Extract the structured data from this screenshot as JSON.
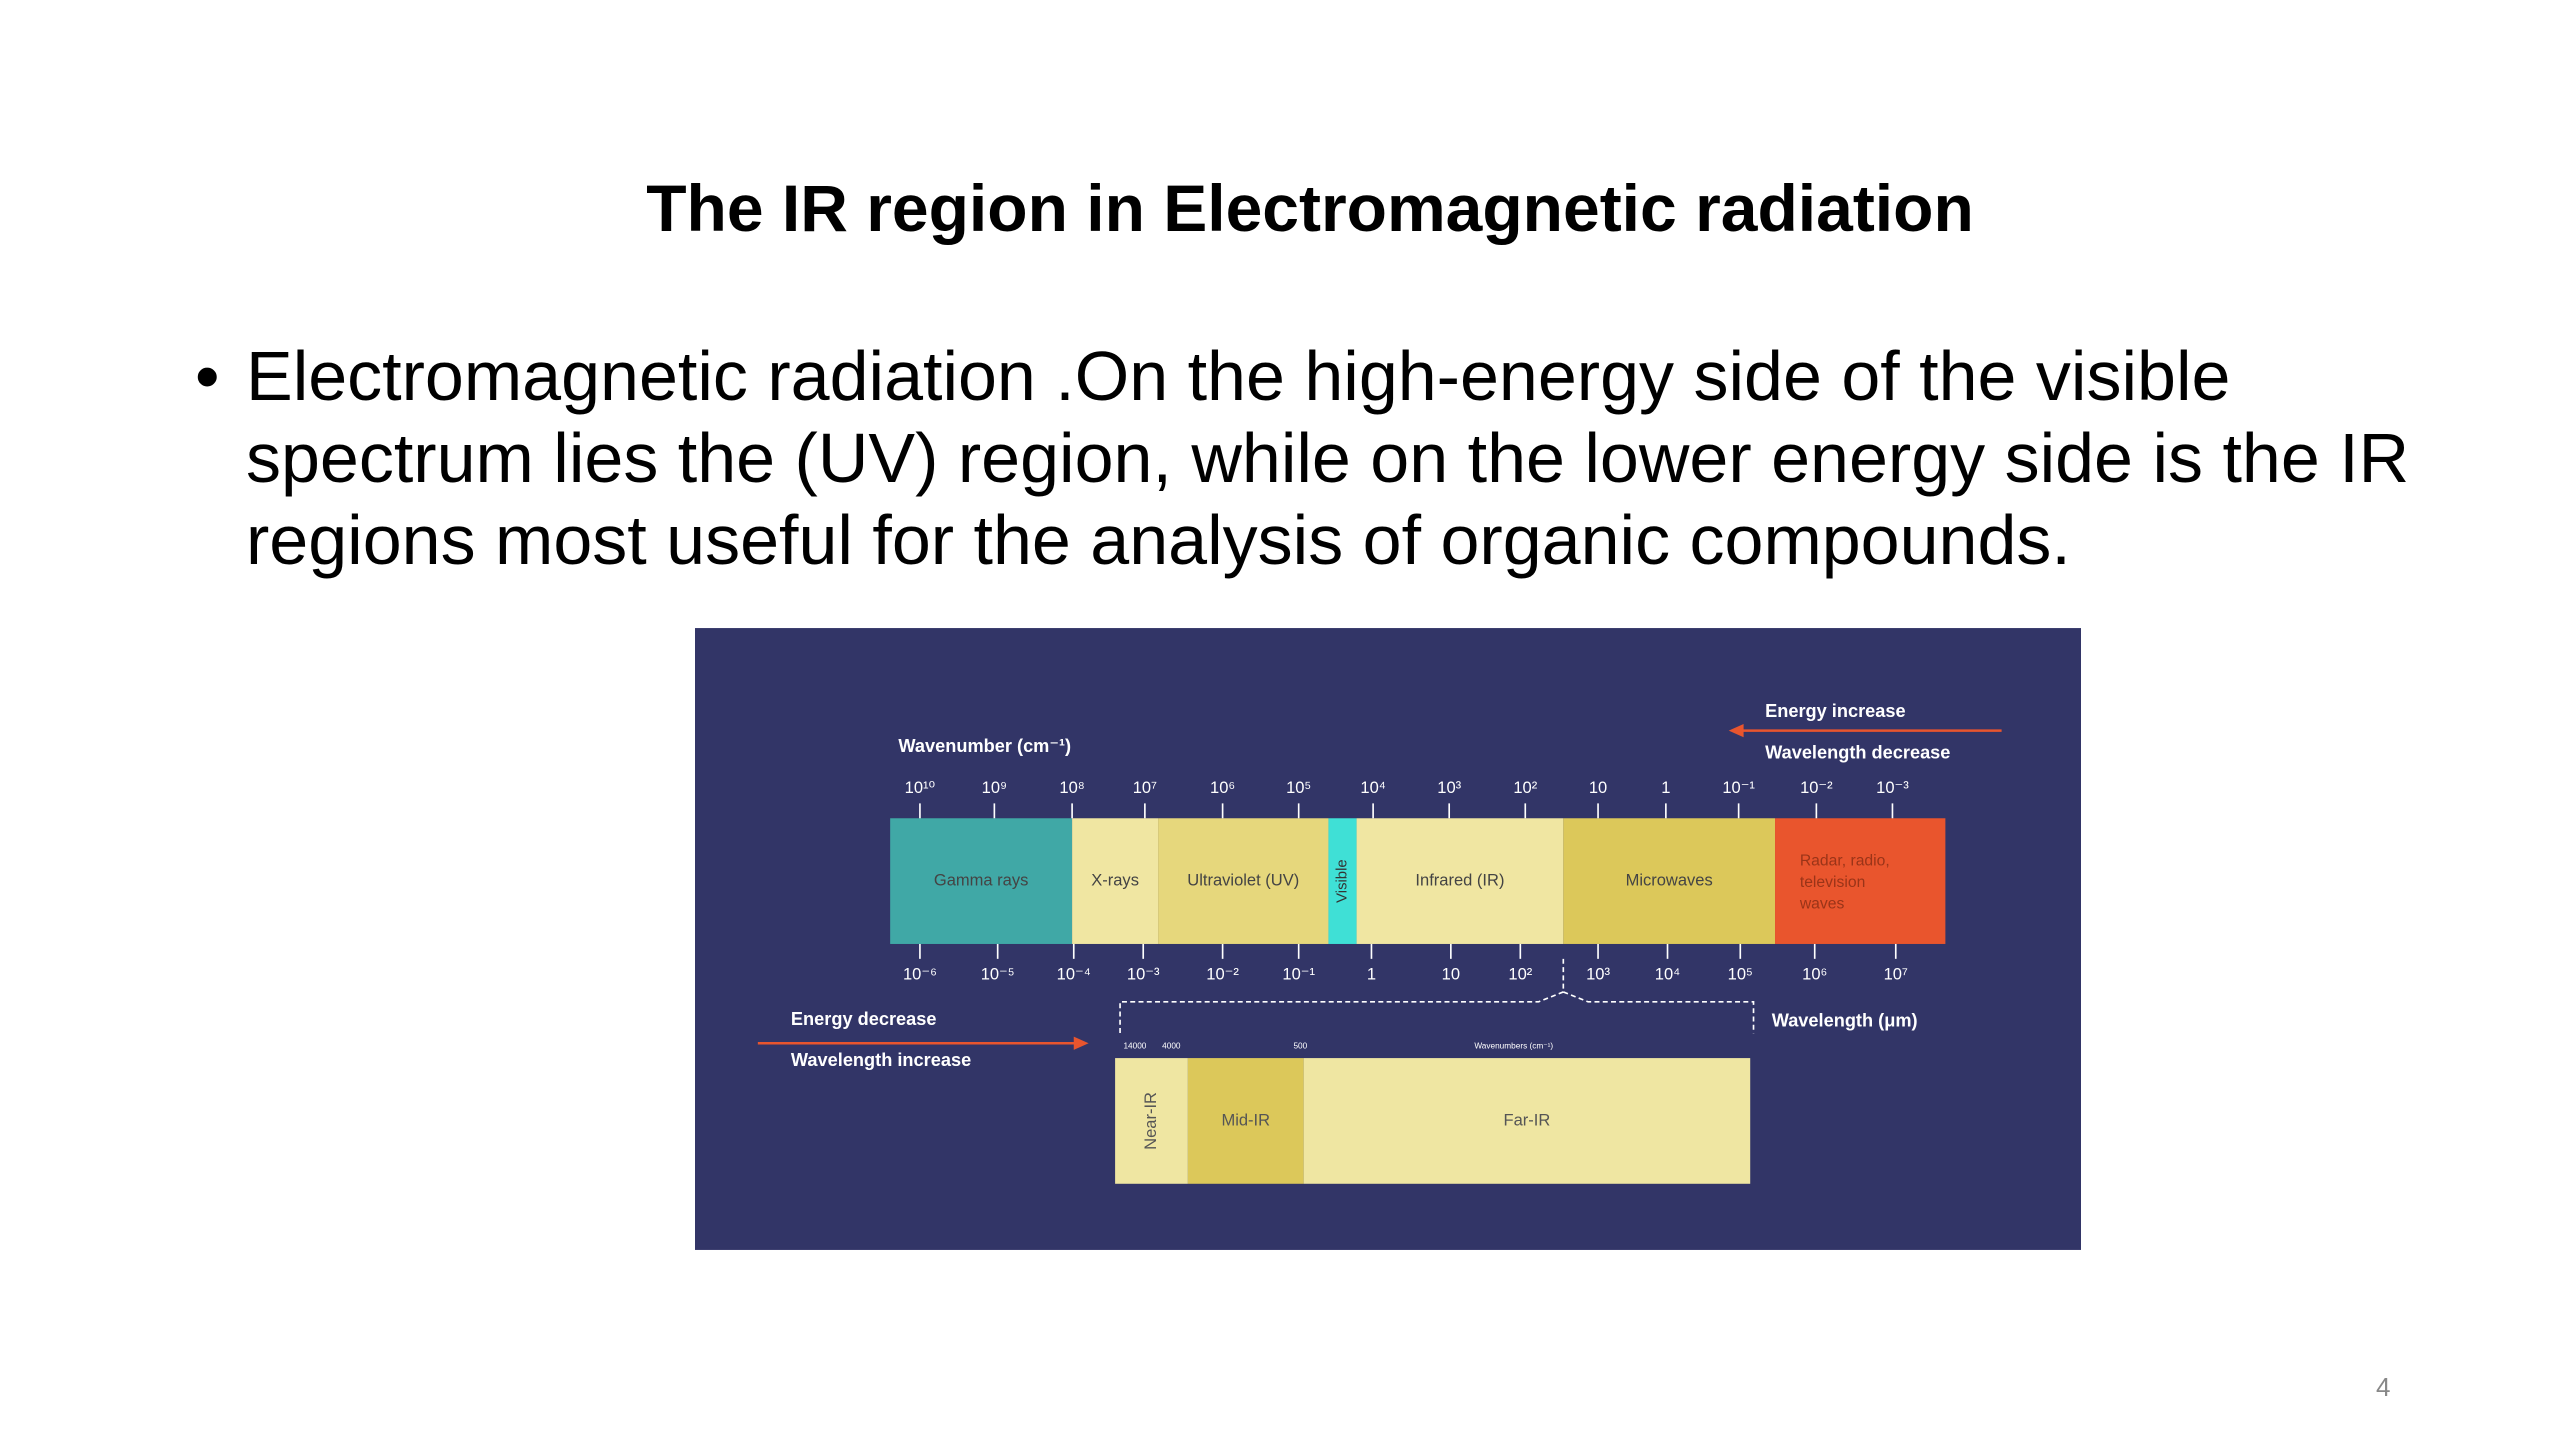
{
  "header": {
    "title": "The IR region in Electromagnetic radiation"
  },
  "body": {
    "bullets": [
      "Electromagnetic radiation .On the high-energy side of the visible spectrum lies the  (UV) region, while on the lower energy side is the  IR regions most useful for the analysis of organic compounds."
    ]
  },
  "figure": {
    "wavenumber_label": "Wavenumber (cm⁻¹)",
    "wavenumber_ticks": [
      "10¹⁰",
      "10⁹",
      "10⁸",
      "10⁷",
      "10⁶",
      "10⁵",
      "10⁴",
      "10³",
      "10²",
      "10",
      "1",
      "10⁻¹",
      "10⁻²",
      "10⁻³"
    ],
    "wavelength_label": "Wavelength (μm)",
    "wavelength_ticks": [
      "10⁻⁶",
      "10⁻⁵",
      "10⁻⁴",
      "10⁻³",
      "10⁻²",
      "10⁻¹",
      "1",
      "10",
      "10²",
      "10³",
      "10⁴",
      "10⁵",
      "10⁶",
      "10⁷"
    ],
    "energy_increase": "Energy increase",
    "wavelength_decrease": "Wavelength decrease",
    "energy_decrease": "Energy decrease",
    "wavelength_increase": "Wavelength increase",
    "regions": [
      "Gamma rays",
      "X-rays",
      "Ultraviolet (UV)",
      "Visible",
      "Infrared (IR)",
      "Microwaves",
      "Radar, radio, television waves"
    ],
    "ir_wavenumber_ticks": [
      "14000",
      "4000",
      "500"
    ],
    "ir_wavenumber_label": "Wavenumbers (cm⁻¹)",
    "ir_regions": [
      "Near-IR",
      "Mid-IR",
      "Far-IR"
    ]
  },
  "footer": {
    "page_number": "4"
  }
}
